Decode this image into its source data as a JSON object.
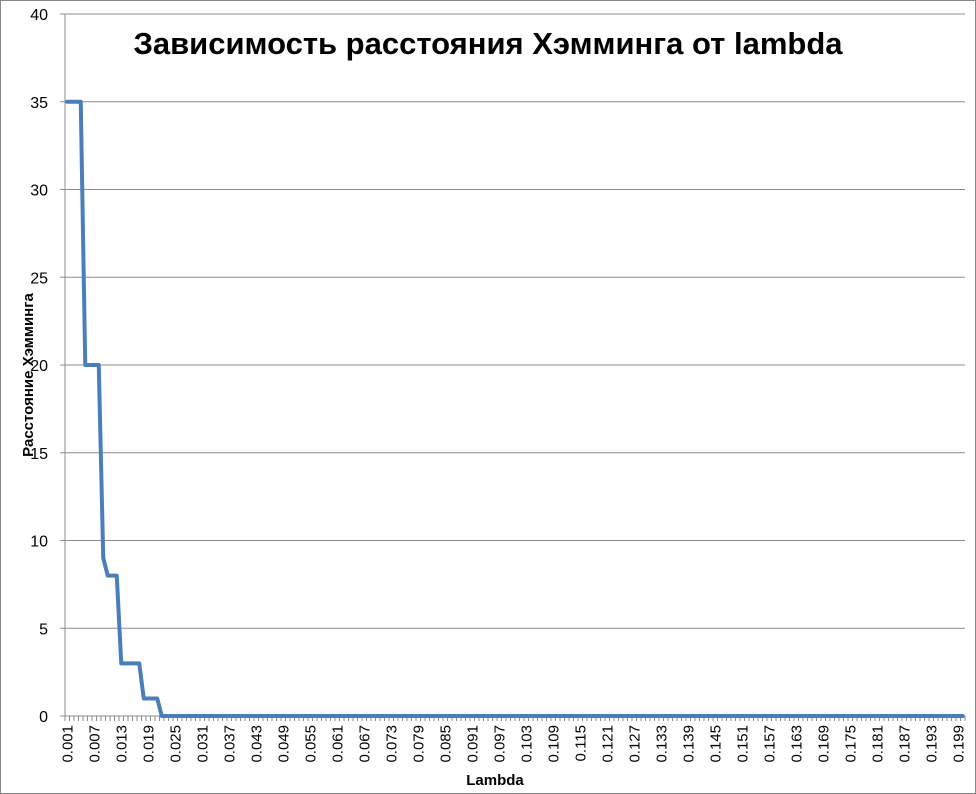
{
  "chart_data": {
    "type": "line",
    "title": "Зависимость расстояния Хэмминга от lambda",
    "xlabel": "Lambda",
    "ylabel": "Расстояние Хэмминга",
    "ylim": [
      0,
      40
    ],
    "y_ticks": [
      0,
      5,
      10,
      15,
      20,
      25,
      30,
      35,
      40
    ],
    "x_tick_labels": [
      "0.001",
      "0.007",
      "0.013",
      "0.019",
      "0.025",
      "0.031",
      "0.037",
      "0.043",
      "0.049",
      "0.055",
      "0.061",
      "0.067",
      "0.073",
      "0.079",
      "0.085",
      "0.091",
      "0.097",
      "0.103",
      "0.109",
      "0.115",
      "0.121",
      "0.127",
      "0.133",
      "0.139",
      "0.145",
      "0.151",
      "0.157",
      "0.163",
      "0.169",
      "0.175",
      "0.181",
      "0.187",
      "0.193",
      "0.199"
    ],
    "grid": "horizontal",
    "legend": "none",
    "series": [
      {
        "color": "#4a7ebb",
        "x": [
          0.001,
          0.002,
          0.003,
          0.004,
          0.005,
          0.006,
          0.007,
          0.008,
          0.009,
          0.01,
          0.011,
          0.012,
          0.013,
          0.014,
          0.015,
          0.016,
          0.017,
          0.018,
          0.019,
          0.02,
          0.021,
          0.022,
          0.023,
          0.024,
          0.025,
          0.026,
          0.027,
          0.028,
          0.029,
          0.03,
          0.031,
          0.032,
          0.033,
          0.034,
          0.035,
          0.036,
          0.037,
          0.038,
          0.039,
          0.04,
          0.041,
          0.042,
          0.043,
          0.044,
          0.045,
          0.046,
          0.047,
          0.048,
          0.049,
          0.05,
          0.051,
          0.052,
          0.053,
          0.054,
          0.055,
          0.056,
          0.057,
          0.058,
          0.059,
          0.06,
          0.061,
          0.062,
          0.063,
          0.064,
          0.065,
          0.066,
          0.067,
          0.068,
          0.069,
          0.07,
          0.071,
          0.072,
          0.073,
          0.074,
          0.075,
          0.076,
          0.077,
          0.078,
          0.079,
          0.08,
          0.081,
          0.082,
          0.083,
          0.084,
          0.085,
          0.086,
          0.087,
          0.088,
          0.089,
          0.09,
          0.091,
          0.092,
          0.093,
          0.094,
          0.095,
          0.096,
          0.097,
          0.098,
          0.099,
          0.1,
          0.101,
          0.102,
          0.103,
          0.104,
          0.105,
          0.106,
          0.107,
          0.108,
          0.109,
          0.11,
          0.111,
          0.112,
          0.113,
          0.114,
          0.115,
          0.116,
          0.117,
          0.118,
          0.119,
          0.12,
          0.121,
          0.122,
          0.123,
          0.124,
          0.125,
          0.126,
          0.127,
          0.128,
          0.129,
          0.13,
          0.131,
          0.132,
          0.133,
          0.134,
          0.135,
          0.136,
          0.137,
          0.138,
          0.139,
          0.14,
          0.141,
          0.142,
          0.143,
          0.144,
          0.145,
          0.146,
          0.147,
          0.148,
          0.149,
          0.15,
          0.151,
          0.152,
          0.153,
          0.154,
          0.155,
          0.156,
          0.157,
          0.158,
          0.159,
          0.16,
          0.161,
          0.162,
          0.163,
          0.164,
          0.165,
          0.166,
          0.167,
          0.168,
          0.169,
          0.17,
          0.171,
          0.172,
          0.173,
          0.174,
          0.175,
          0.176,
          0.177,
          0.178,
          0.179,
          0.18,
          0.181,
          0.182,
          0.183,
          0.184,
          0.185,
          0.186,
          0.187,
          0.188,
          0.189,
          0.19,
          0.191,
          0.192,
          0.193,
          0.194,
          0.195,
          0.196,
          0.197,
          0.198,
          0.199,
          0.2
        ],
        "values": [
          35,
          35,
          35,
          35,
          20,
          20,
          20,
          20,
          9,
          8,
          8,
          8,
          3,
          3,
          3,
          3,
          3,
          1,
          1,
          1,
          1,
          0,
          0,
          0,
          0,
          0,
          0,
          0,
          0,
          0,
          0,
          0,
          0,
          0,
          0,
          0,
          0,
          0,
          0,
          0,
          0,
          0,
          0,
          0,
          0,
          0,
          0,
          0,
          0,
          0,
          0,
          0,
          0,
          0,
          0,
          0,
          0,
          0,
          0,
          0,
          0,
          0,
          0,
          0,
          0,
          0,
          0,
          0,
          0,
          0,
          0,
          0,
          0,
          0,
          0,
          0,
          0,
          0,
          0,
          0,
          0,
          0,
          0,
          0,
          0,
          0,
          0,
          0,
          0,
          0,
          0,
          0,
          0,
          0,
          0,
          0,
          0,
          0,
          0,
          0,
          0,
          0,
          0,
          0,
          0,
          0,
          0,
          0,
          0,
          0,
          0,
          0,
          0,
          0,
          0,
          0,
          0,
          0,
          0,
          0,
          0,
          0,
          0,
          0,
          0,
          0,
          0,
          0,
          0,
          0,
          0,
          0,
          0,
          0,
          0,
          0,
          0,
          0,
          0,
          0,
          0,
          0,
          0,
          0,
          0,
          0,
          0,
          0,
          0,
          0,
          0,
          0,
          0,
          0,
          0,
          0,
          0,
          0,
          0,
          0,
          0,
          0,
          0,
          0,
          0,
          0,
          0,
          0,
          0,
          0,
          0,
          0,
          0,
          0,
          0,
          0,
          0,
          0,
          0,
          0,
          0,
          0,
          0,
          0,
          0,
          0,
          0,
          0,
          0,
          0,
          0,
          0,
          0,
          0,
          0,
          0,
          0,
          0,
          0,
          0
        ]
      }
    ]
  }
}
